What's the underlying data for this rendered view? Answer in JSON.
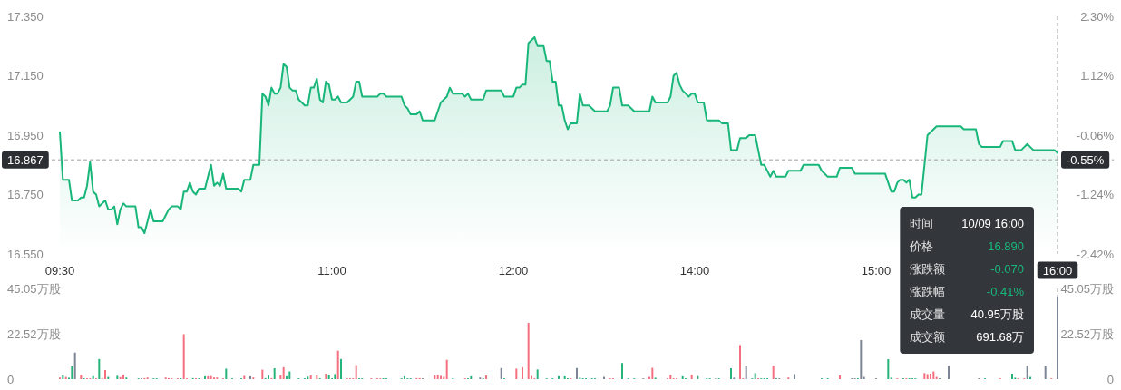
{
  "chart_data": [
    {
      "type": "area",
      "color": "#19b67a",
      "categories": [
        "09:30",
        null,
        null,
        null,
        null,
        null,
        null,
        null,
        null,
        null,
        null,
        null,
        null,
        null,
        null,
        null,
        null,
        null,
        null,
        null,
        null,
        null,
        null,
        null,
        null,
        null,
        null,
        null,
        null,
        null,
        null,
        null,
        null,
        null,
        null,
        null,
        null,
        null,
        null,
        null,
        null,
        null,
        null,
        null,
        null,
        null,
        null,
        null,
        null,
        null,
        null,
        null,
        null,
        null,
        null,
        null,
        null,
        null,
        null,
        null,
        null,
        null,
        null,
        null,
        null,
        null,
        null,
        null,
        null,
        null,
        null,
        null,
        null,
        null,
        null,
        null,
        null,
        null,
        null,
        null,
        null,
        null,
        null,
        null,
        null,
        null,
        null,
        null,
        null,
        null,
        "11:00",
        null,
        null,
        null,
        null,
        null,
        null,
        null,
        null,
        null,
        null,
        null,
        null,
        null,
        null,
        null,
        null,
        null,
        null,
        null,
        null,
        null,
        null,
        null,
        null,
        null,
        null,
        null,
        null,
        null,
        null,
        null,
        null,
        null,
        null,
        null,
        null,
        null,
        null,
        null,
        null,
        null,
        null,
        null,
        null,
        null,
        null,
        null,
        null,
        null,
        null,
        null,
        null,
        null,
        null,
        null,
        null,
        null,
        null,
        null,
        "12:00",
        null,
        null,
        null,
        null,
        null,
        null,
        null,
        null,
        null,
        null,
        null,
        null,
        null,
        null,
        null,
        null,
        null,
        null,
        null,
        null,
        null,
        null,
        null,
        null,
        null,
        null,
        null,
        null,
        null,
        null,
        null,
        null,
        null,
        null,
        null,
        null,
        null,
        null,
        null,
        null,
        null,
        null,
        null,
        null,
        null,
        null,
        null,
        null,
        null,
        null,
        null,
        null,
        null,
        null,
        null,
        null,
        null,
        null,
        null,
        "14:00",
        null,
        null,
        null,
        null,
        null,
        null,
        null,
        null,
        null,
        null,
        null,
        null,
        null,
        null,
        null,
        null,
        null,
        null,
        null,
        null,
        null,
        null,
        null,
        null,
        null,
        null,
        null,
        null,
        null,
        null,
        null,
        null,
        null,
        null,
        null,
        null,
        null,
        null,
        null,
        null,
        null,
        null,
        null,
        null,
        null,
        null,
        null,
        null,
        null,
        null,
        null,
        null,
        null,
        null,
        null,
        null,
        null,
        null,
        null,
        "15:00",
        null,
        null,
        null,
        null,
        null,
        null,
        null,
        null,
        null,
        null,
        null,
        null,
        null,
        null,
        null,
        null,
        null,
        null,
        null,
        null,
        null,
        null,
        null,
        null,
        null,
        null,
        null,
        null,
        null,
        null,
        null,
        null,
        null,
        null,
        null,
        null,
        null,
        null,
        null,
        null,
        null,
        null,
        null,
        null,
        null,
        null,
        null,
        null,
        null,
        null,
        null,
        null,
        null,
        null,
        null,
        null,
        null,
        null,
        null,
        "16:00"
      ],
      "values": [
        16.96,
        16.8,
        16.8,
        16.8,
        16.73,
        16.73,
        16.73,
        16.74,
        16.74,
        16.78,
        16.86,
        16.76,
        16.75,
        16.71,
        16.72,
        16.73,
        16.7,
        16.7,
        16.71,
        16.65,
        16.7,
        16.72,
        16.71,
        16.71,
        16.71,
        16.71,
        16.64,
        16.64,
        16.62,
        16.66,
        16.7,
        16.66,
        16.66,
        16.66,
        16.66,
        16.68,
        16.7,
        16.71,
        16.71,
        16.71,
        16.7,
        16.76,
        16.76,
        16.79,
        16.76,
        16.75,
        16.77,
        16.77,
        16.77,
        16.81,
        16.85,
        16.78,
        16.79,
        16.78,
        16.82,
        16.77,
        16.77,
        16.77,
        16.77,
        16.77,
        16.76,
        16.8,
        16.8,
        16.8,
        16.85,
        16.85,
        16.85,
        17.09,
        17.08,
        17.05,
        17.11,
        17.09,
        17.09,
        17.11,
        17.19,
        17.18,
        17.11,
        17.1,
        17.1,
        17.07,
        17.06,
        17.05,
        17.05,
        17.11,
        17.11,
        17.14,
        17.07,
        17.06,
        17.13,
        17.12,
        17.07,
        17.07,
        17.08,
        17.06,
        17.06,
        17.06,
        17.07,
        17.08,
        17.13,
        17.13,
        17.08,
        17.08,
        17.08,
        17.08,
        17.08,
        17.08,
        17.09,
        17.09,
        17.08,
        17.08,
        17.08,
        17.08,
        17.08,
        17.08,
        17.05,
        17.04,
        17.02,
        17.02,
        17.02,
        17.03,
        17.0,
        17.0,
        17.0,
        17.0,
        17.0,
        17.03,
        17.06,
        17.07,
        17.08,
        17.11,
        17.09,
        17.09,
        17.09,
        17.09,
        17.08,
        17.09,
        17.07,
        17.07,
        17.07,
        17.07,
        17.07,
        17.1,
        17.1,
        17.1,
        17.1,
        17.1,
        17.1,
        17.08,
        17.08,
        17.08,
        17.08,
        17.11,
        17.11,
        17.12,
        17.12,
        17.26,
        17.27,
        17.28,
        17.25,
        17.25,
        17.25,
        17.2,
        17.2,
        17.13,
        17.13,
        17.05,
        17.05,
        17.0,
        16.97,
        16.99,
        16.99,
        16.99,
        17.09,
        17.05,
        17.05,
        17.05,
        17.04,
        17.03,
        17.03,
        17.03,
        17.03,
        17.03,
        17.05,
        17.11,
        17.11,
        17.11,
        17.05,
        17.05,
        17.05,
        17.04,
        17.03,
        17.03,
        17.03,
        17.03,
        17.03,
        17.03,
        17.08,
        17.06,
        17.06,
        17.06,
        17.06,
        17.06,
        17.08,
        17.15,
        17.16,
        17.12,
        17.1,
        17.09,
        17.08,
        17.09,
        17.09,
        17.06,
        17.06,
        17.06,
        17.0,
        17.0,
        17.0,
        17.0,
        17.0,
        16.99,
        16.99,
        16.99,
        16.9,
        16.9,
        16.9,
        16.94,
        16.94,
        16.94,
        16.95,
        16.95,
        16.95,
        16.9,
        16.85,
        16.85,
        16.83,
        16.81,
        16.83,
        16.81,
        16.81,
        16.81,
        16.81,
        16.83,
        16.83,
        16.83,
        16.83,
        16.83,
        16.85,
        16.85,
        16.85,
        16.85,
        16.85,
        16.85,
        16.83,
        16.82,
        16.81,
        16.81,
        16.81,
        16.81,
        16.84,
        16.84,
        16.84,
        16.84,
        16.84,
        16.82,
        16.82,
        16.82,
        16.82,
        16.82,
        16.82,
        16.82,
        16.82,
        16.82,
        16.82,
        16.82,
        16.79,
        16.76,
        16.76,
        16.79,
        16.8,
        16.8,
        16.79,
        16.8,
        16.74,
        16.74,
        16.75,
        16.75,
        16.85,
        16.95,
        16.96,
        16.97,
        16.98,
        16.98,
        16.98,
        16.98,
        16.98,
        16.98,
        16.98,
        16.98,
        16.98,
        16.97,
        16.97,
        16.97,
        16.97,
        16.97,
        16.92,
        16.91,
        16.91,
        16.91,
        16.91,
        16.91,
        16.91,
        16.91,
        16.93,
        16.93,
        16.93,
        16.93,
        16.9,
        16.9,
        16.9,
        16.91,
        16.92,
        16.91,
        16.9,
        16.9,
        16.9,
        16.9,
        16.9,
        16.9,
        16.9,
        16.9,
        16.89
      ],
      "ylim": [
        16.55,
        17.35
      ],
      "yticks": [
        {
          "value": 16.55,
          "label": "16.550"
        },
        {
          "value": 16.75,
          "label": "16.750"
        },
        {
          "value": 16.95,
          "label": "16.950"
        },
        {
          "value": 17.15,
          "label": "17.150"
        },
        {
          "value": 17.35,
          "label": "17.350"
        }
      ],
      "y2lim": [
        -2.42,
        2.3
      ],
      "y2ticks": [
        {
          "value": -2.42,
          "label": "-2.42%"
        },
        {
          "value": -1.24,
          "label": "-1.24%"
        },
        {
          "value": -0.06,
          "label": "-0.06%"
        },
        {
          "value": 1.12,
          "label": "1.12%"
        },
        {
          "value": 2.3,
          "label": "2.30%"
        }
      ],
      "ref_lines": [
        {
          "axis": "y",
          "value": 16.867,
          "label": "16.867",
          "color": "#9e9e9e",
          "line_style": "dashed"
        },
        {
          "axis": "x",
          "value": "16:00",
          "color": "#9e9e9e",
          "line_style": "dashed"
        }
      ],
      "annotations": [
        "时间",
        "10/09 16:00",
        "价格",
        "16.890",
        "涨跌额",
        "-0.070",
        "涨跌幅",
        "-0.41%",
        "成交量",
        "40.95万股",
        "成交额",
        "691.68万",
        {
          "text": "-0.55%",
          "x": "16:00",
          "y": 16.867
        }
      ]
    },
    {
      "type": "bar",
      "categories": [
        "09:30",
        null,
        null,
        null,
        null,
        null,
        null,
        null,
        null,
        null,
        null,
        null,
        null,
        null,
        null,
        null,
        null,
        null,
        null,
        null,
        null,
        null,
        null,
        null,
        null,
        null,
        null,
        null,
        null,
        null,
        null,
        null,
        null,
        null,
        null,
        null,
        null,
        null,
        null,
        null,
        null,
        null,
        null,
        null,
        null,
        null,
        null,
        null,
        null,
        null,
        null,
        null,
        null,
        null,
        null,
        null,
        null,
        null,
        null,
        null,
        null,
        null,
        null,
        null,
        null,
        null,
        null,
        null,
        null,
        null,
        null,
        null,
        null,
        null,
        null,
        null,
        null,
        null,
        null,
        null,
        null,
        null,
        null,
        null,
        null,
        null,
        null,
        null,
        null,
        null,
        "11:00",
        null,
        null,
        null,
        null,
        null,
        null,
        null,
        null,
        null,
        null,
        null,
        null,
        null,
        null,
        null,
        null,
        null,
        null,
        null,
        null,
        null,
        null,
        null,
        null,
        null,
        null,
        null,
        null,
        null,
        null,
        null,
        null,
        null,
        null,
        null,
        null,
        null,
        null,
        null,
        null,
        null,
        null,
        null,
        null,
        null,
        null,
        null,
        null,
        null,
        null,
        null,
        null,
        null,
        null,
        null,
        null,
        null,
        null,
        null,
        "12:00",
        null,
        null,
        null,
        null,
        null,
        null,
        null,
        null,
        null,
        null,
        null,
        null,
        null,
        null,
        null,
        null,
        null,
        null,
        null,
        null,
        null,
        null,
        null,
        null,
        null,
        null,
        null,
        null,
        null,
        null,
        null,
        null,
        null,
        null,
        null,
        null,
        null,
        null,
        null,
        null,
        null,
        null,
        null,
        null,
        null,
        null,
        null,
        null,
        null,
        null,
        null,
        null,
        null,
        null,
        null,
        null,
        null,
        null,
        null,
        "14:00",
        null,
        null,
        null,
        null,
        null,
        null,
        null,
        null,
        null,
        null,
        null,
        null,
        null,
        null,
        null,
        null,
        null,
        null,
        null,
        null,
        null,
        null,
        null,
        null,
        null,
        null,
        null,
        null,
        null,
        null,
        null,
        null,
        null,
        null,
        null,
        null,
        null,
        null,
        null,
        null,
        null,
        null,
        null,
        null,
        null,
        null,
        null,
        null,
        null,
        null,
        null,
        null,
        null,
        null,
        null,
        null,
        null,
        null,
        null,
        "15:00",
        null,
        null,
        null,
        null,
        null,
        null,
        null,
        null,
        null,
        null,
        null,
        null,
        null,
        null,
        null,
        null,
        null,
        null,
        null,
        null,
        null,
        null,
        null,
        null,
        null,
        null,
        null,
        null,
        null,
        null,
        null,
        null,
        null,
        null,
        null,
        null,
        null,
        null,
        null,
        null,
        null,
        null,
        null,
        null,
        null,
        null,
        null,
        null,
        null,
        null,
        null,
        null,
        null,
        null,
        null,
        null,
        null,
        null,
        null,
        "16:00"
      ],
      "values": [
        0.8,
        1.8,
        1.1,
        0.7,
        6.3,
        13.2,
        null,
        2.2,
        0.4,
        0.4,
        0.4,
        1.5,
        0.4,
        10.0,
        0.4,
        4.5,
        1.1,
        null,
        null,
        1.6,
        1.0,
        2.2,
        0.8,
        null,
        null,
        null,
        0.4,
        0.4,
        0.5,
        0.8,
        null,
        0.4,
        0.4,
        null,
        null,
        0.8,
        0.5,
        0.4,
        null,
        0.4,
        0.4,
        22.3,
        0.4,
        null,
        0.5,
        0.4,
        0.4,
        null,
        1.4,
        1.4,
        1.5,
        0.8,
        0.8,
        null,
        0.4,
        5.2,
        null,
        0.4,
        null,
        null,
        0.4,
        1.6,
        null,
        1.4,
        0.8,
        null,
        null,
        4.7,
        0.5,
        1.9,
        0.5,
        5.4,
        null,
        1.9,
        5.9,
        1.4,
        3.8,
        null,
        null,
        0.4,
        null,
        0.4,
        1.2,
        1.8,
        null,
        1.8,
        0.4,
        null,
        2.7,
        2.2,
        0.4,
        2.5,
        14.1,
        10.0,
        null,
        0.4,
        0.4,
        0.4,
        7.0,
        0.4,
        0.4,
        null,
        null,
        0.4,
        null,
        0.4,
        0.4,
        0.4,
        0.4,
        null,
        null,
        null,
        null,
        0.4,
        1.4,
        0.4,
        0.4,
        null,
        0.5,
        0.5,
        0.4,
        null,
        null,
        null,
        1.8,
        2.1,
        1.6,
        1.1,
        9.6,
        null,
        0.4,
        null,
        null,
        null,
        0.4,
        0.4,
        1.4,
        null,
        null,
        0.8,
        0.4,
        1.8,
        null,
        null,
        null,
        null,
        5.5,
        0.4,
        null,
        null,
        null,
        5.2,
        null,
        5.9,
        null,
        27.9,
        1.6,
        0.4,
        4.8,
        null,
        null,
        0.4,
        null,
        0.4,
        null,
        1.4,
        null,
        1.4,
        0.4,
        0.4,
        null,
        5.5,
        0.7,
        0.4,
        0.4,
        null,
        0.4,
        0.4,
        null,
        null,
        1.1,
        null,
        0.4,
        0.4,
        null,
        null,
        8.0,
        null,
        0.4,
        null,
        0.4,
        null,
        null,
        0.4,
        null,
        1.1,
        5.6,
        0.7,
        null,
        null,
        null,
        0.4,
        2.1,
        0.4,
        0.4,
        null,
        1.4,
        0.4,
        null,
        2.2,
        null,
        1.5,
        null,
        null,
        0.4,
        0.4,
        null,
        0.4,
        0.4,
        null,
        null,
        null,
        5.4,
        0.7,
        null,
        16.9,
        0.4,
        6.6,
        null,
        0.4,
        3.0,
        0.4,
        0.4,
        0.4,
        0.4,
        null,
        6.6,
        0.4,
        0.4,
        null,
        null,
        0.8,
        null,
        2.5,
        null,
        null,
        null,
        null,
        null,
        null,
        null,
        null,
        0.4,
        null,
        0.4,
        null,
        null,
        null,
        1.9,
        null,
        null,
        null,
        0.4,
        0.4,
        0.4,
        19.4,
        1.1,
        null,
        null,
        null,
        0.4,
        null,
        null,
        null,
        9.9,
        0.7,
        null,
        0.4,
        null,
        0.4,
        0.4,
        0.4,
        0.4,
        0.4,
        null,
        null,
        3.0,
        2.5,
        2.7,
        3.8,
        1.1,
        0.4,
        null,
        null,
        6.6,
        null,
        null,
        null,
        null,
        null,
        null,
        null,
        null,
        null,
        0.4,
        null,
        0.4,
        null,
        null,
        null,
        null,
        0.4,
        null,
        null,
        null,
        2.7,
        0.7,
        0.4,
        null,
        0.4,
        6.6,
        1.1,
        null,
        null,
        null,
        null,
        6.6,
        null,
        0.4,
        null,
        40.95
      ],
      "colors": [
        "#f4707f",
        "#26b47b",
        "#f4707f",
        "#26b47b",
        "#26b47b",
        "#7c8696",
        null,
        "#f4707f",
        "#26b47b",
        "#f4707f",
        "#f4707f",
        "#26b47b",
        "#f4707f",
        "#26b47b",
        "#f4707f",
        "#f4707f",
        "#26b47b",
        null,
        null,
        "#26b47b",
        "#f4707f",
        "#f4707f",
        "#26b47b",
        null,
        null,
        null,
        "#26b47b",
        "#7c8696",
        "#f4707f",
        "#f4707f",
        null,
        "#26b47b",
        "#26b47b",
        null,
        null,
        "#f4707f",
        "#f4707f",
        "#f4707f",
        null,
        "#f4707f",
        "#26b47b",
        "#f4707f",
        "#f4707f",
        null,
        "#26b47b",
        "#f4707f",
        "#26b47b",
        null,
        "#26b47b",
        "#f4707f",
        "#f4707f",
        "#f4707f",
        "#f4707f",
        null,
        "#f4707f",
        "#26b47b",
        null,
        "#26b47b",
        null,
        null,
        "#26b47b",
        "#f4707f",
        null,
        "#7c8696",
        "#f4707f",
        null,
        null,
        "#f4707f",
        "#26b47b",
        "#26b47b",
        "#f4707f",
        "#26b47b",
        null,
        "#f4707f",
        "#f4707f",
        "#26b47b",
        "#26b47b",
        null,
        null,
        "#26b47b",
        null,
        "#26b47b",
        "#26b47b",
        "#f4707f",
        null,
        "#f4707f",
        "#26b47b",
        null,
        "#f4707f",
        "#26b47b",
        "#26b47b",
        "#26b47b",
        "#f4707f",
        "#26b47b",
        null,
        "#f4707f",
        "#f4707f",
        "#f4707f",
        "#f4707f",
        "#26b47b",
        "#26b47b",
        null,
        null,
        "#f4707f",
        null,
        "#f4707f",
        "#f4707f",
        "#26b47b",
        "#26b47b",
        null,
        null,
        null,
        null,
        "#26b47b",
        "#26b47b",
        "#26b47b",
        "#26b47b",
        null,
        "#f4707f",
        "#f4707f",
        "#7c8696",
        null,
        null,
        null,
        "#f4707f",
        "#f4707f",
        "#f4707f",
        "#f4707f",
        "#f4707f",
        null,
        "#26b47b",
        null,
        null,
        null,
        "#f4707f",
        "#26b47b",
        "#26b47b",
        null,
        null,
        "#7c8696",
        "#26b47b",
        "#f4707f",
        null,
        null,
        null,
        null,
        "#7c8696",
        "#26b47b",
        null,
        null,
        null,
        "#f4707f",
        null,
        "#f4707f",
        null,
        "#f4707f",
        "#f4707f",
        "#f4707f",
        "#26b47b",
        null,
        null,
        "#26b47b",
        null,
        "#26b47b",
        null,
        "#26b47b",
        null,
        "#26b47b",
        "#26b47b",
        "#f4707f",
        null,
        "#7c8696",
        "#26b47b",
        "#26b47b",
        "#26b47b",
        null,
        "#26b47b",
        "#26b47b",
        null,
        null,
        "#7c8696",
        null,
        "#f4707f",
        "#f4707f",
        null,
        null,
        "#26b47b",
        null,
        "#26b47b",
        null,
        "#26b47b",
        null,
        null,
        "#7c8696",
        null,
        "#f4707f",
        "#f4707f",
        "#26b47b",
        null,
        null,
        null,
        "#f4707f",
        "#f4707f",
        "#f4707f",
        "#f4707f",
        null,
        "#26b47b",
        "#26b47b",
        null,
        "#f4707f",
        null,
        "#26b47b",
        null,
        null,
        "#26b47b",
        "#26b47b",
        null,
        "#7c8696",
        "#26b47b",
        null,
        null,
        null,
        "#26b47b",
        "#7c8696",
        null,
        "#f4707f",
        "#f4707f",
        "#7c8696",
        null,
        "#26b47b",
        "#26b47b",
        "#f4707f",
        "#26b47b",
        "#26b47b",
        "#26b47b",
        null,
        "#f4707f",
        "#26b47b",
        "#7c8696",
        null,
        null,
        "#f4707f",
        null,
        "#7c8696",
        null,
        null,
        null,
        null,
        null,
        null,
        null,
        null,
        "#26b47b",
        null,
        "#26b47b",
        null,
        null,
        null,
        "#f4707f",
        null,
        null,
        null,
        "#7c8696",
        "#7c8696",
        "#26b47b",
        "#7c8696",
        "#7c8696",
        null,
        null,
        null,
        "#7c8696",
        null,
        null,
        null,
        "#26b47b",
        "#26b47b",
        null,
        "#f4707f",
        null,
        "#26b47b",
        "#f4707f",
        "#26b47b",
        "#26b47b",
        "#26b47b",
        null,
        null,
        "#f4707f",
        "#f4707f",
        "#f4707f",
        "#f4707f",
        "#f4707f",
        "#7c8696",
        null,
        null,
        "#7c8696",
        null,
        null,
        null,
        null,
        null,
        null,
        null,
        null,
        null,
        "#7c8696",
        null,
        "#26b47b",
        null,
        null,
        null,
        null,
        "#f4707f",
        null,
        null,
        null,
        "#26b47b",
        "#26b47b",
        "#f4707f",
        null,
        "#f4707f",
        "#7c8696",
        "#26b47b",
        null,
        null,
        null,
        null,
        "#7c8696",
        null,
        "#f4707f",
        null,
        "#7c8696"
      ],
      "ylim": [
        0,
        45.05
      ],
      "yticks": [
        0,
        {
          "value": 22.52,
          "label": "22.52万股"
        },
        {
          "value": 45.05,
          "label": "45.05万股"
        }
      ],
      "y2lim": [
        0,
        45.05
      ],
      "y2ticks": [
        0,
        {
          "value": 22.52,
          "label": "22.52万股"
        },
        {
          "value": 45.05,
          "label": "45.05万股"
        }
      ],
      "tick_labels": "y",
      "ref_lines": [
        {
          "axis": "x",
          "value": "16:00",
          "color": "#9e9e9e",
          "line_style": "dashed"
        }
      ]
    }
  ]
}
